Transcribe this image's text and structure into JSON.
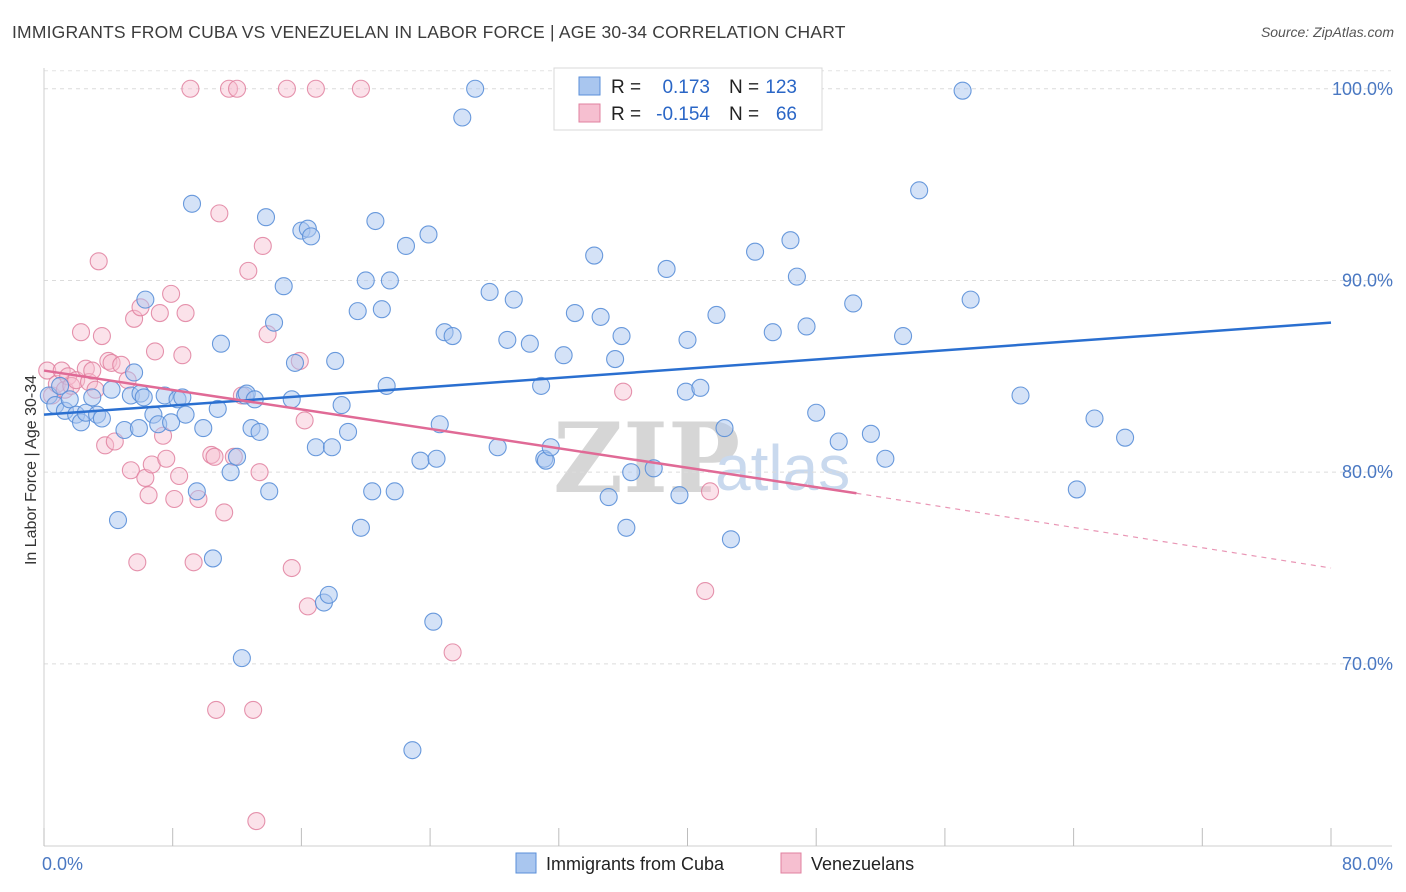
{
  "title": "IMMIGRANTS FROM CUBA VS VENEZUELAN IN LABOR FORCE | AGE 30-34 CORRELATION CHART",
  "source": "Source: ZipAtlas.com",
  "watermark": {
    "zip": "ZIP",
    "atlas": "atlas"
  },
  "legend": {
    "r_label": "R =",
    "n_label": "N =",
    "rows": [
      {
        "r": "0.173",
        "n": "123",
        "color": "#a9c6ef",
        "stroke": "#5a8fd8"
      },
      {
        "r": "-0.154",
        "n": "66",
        "color": "#f6bfd0",
        "stroke": "#e0809f"
      }
    ]
  },
  "bottom_legend": [
    "Immigrants from Cuba",
    "Venezuelans"
  ],
  "chart_data": {
    "type": "scatter",
    "title": "IMMIGRANTS FROM CUBA VS VENEZUELAN IN LABOR FORCE | AGE 30-34 CORRELATION CHART",
    "xlabel": "",
    "ylabel": "In Labor Force | Age 30-34",
    "xlim": [
      0,
      80
    ],
    "ylim": [
      60.5,
      101.5
    ],
    "x_tick_labels": [
      "0.0%",
      "80.0%"
    ],
    "y_ticks": [
      70,
      80,
      90,
      100
    ],
    "y_tick_labels": [
      "70.0%",
      "80.0%",
      "90.0%",
      "100.0%"
    ],
    "grid": true,
    "colors": {
      "cuba": "#5a8fd8",
      "cuba_fill": "#a9c6ef",
      "venezuela": "#e0809f",
      "venezuela_fill": "#f6bfd0",
      "cuba_line": "#2a6fd0",
      "venezuela_line": "#e06a96"
    },
    "series": [
      {
        "name": "Immigrants from Cuba",
        "trend": {
          "x": [
            0,
            80
          ],
          "y": [
            83.0,
            87.8
          ]
        },
        "points": [
          [
            0.3,
            84.0
          ],
          [
            0.7,
            83.5
          ],
          [
            1.0,
            84.5
          ],
          [
            1.3,
            83.2
          ],
          [
            1.6,
            83.8
          ],
          [
            2.0,
            83.0
          ],
          [
            2.3,
            82.6
          ],
          [
            2.6,
            83.1
          ],
          [
            3.0,
            83.9
          ],
          [
            3.3,
            83.0
          ],
          [
            3.6,
            82.8
          ],
          [
            4.2,
            84.3
          ],
          [
            4.6,
            77.5
          ],
          [
            5.0,
            82.2
          ],
          [
            5.4,
            84.0
          ],
          [
            5.6,
            85.2
          ],
          [
            5.9,
            82.3
          ],
          [
            6.0,
            84.1
          ],
          [
            6.2,
            83.9
          ],
          [
            6.3,
            89.0
          ],
          [
            6.8,
            83.0
          ],
          [
            7.1,
            82.5
          ],
          [
            7.5,
            84.0
          ],
          [
            7.9,
            82.6
          ],
          [
            8.3,
            83.8
          ],
          [
            8.6,
            83.9
          ],
          [
            8.8,
            83.0
          ],
          [
            9.2,
            94.0
          ],
          [
            9.5,
            79.0
          ],
          [
            9.9,
            82.3
          ],
          [
            10.5,
            75.5
          ],
          [
            10.8,
            83.3
          ],
          [
            11.0,
            86.7
          ],
          [
            11.6,
            80.0
          ],
          [
            12.0,
            80.8
          ],
          [
            12.3,
            70.3
          ],
          [
            12.5,
            84.0
          ],
          [
            12.9,
            82.3
          ],
          [
            12.6,
            84.1
          ],
          [
            13.1,
            83.8
          ],
          [
            13.4,
            82.1
          ],
          [
            13.8,
            93.3
          ],
          [
            14.0,
            79.0
          ],
          [
            14.3,
            87.8
          ],
          [
            14.9,
            89.7
          ],
          [
            15.4,
            83.8
          ],
          [
            15.6,
            85.7
          ],
          [
            16.0,
            92.6
          ],
          [
            16.4,
            92.7
          ],
          [
            16.6,
            92.3
          ],
          [
            16.9,
            81.3
          ],
          [
            17.4,
            73.2
          ],
          [
            17.7,
            73.6
          ],
          [
            17.9,
            81.3
          ],
          [
            18.1,
            85.8
          ],
          [
            18.5,
            83.5
          ],
          [
            18.9,
            82.1
          ],
          [
            19.5,
            88.4
          ],
          [
            19.7,
            77.1
          ],
          [
            20.0,
            90.0
          ],
          [
            20.4,
            79.0
          ],
          [
            20.6,
            93.1
          ],
          [
            21.0,
            88.5
          ],
          [
            21.3,
            84.5
          ],
          [
            21.5,
            90.0
          ],
          [
            21.8,
            79.0
          ],
          [
            22.5,
            91.8
          ],
          [
            22.9,
            65.5
          ],
          [
            23.4,
            80.6
          ],
          [
            23.9,
            92.4
          ],
          [
            24.2,
            72.2
          ],
          [
            24.4,
            80.7
          ],
          [
            24.6,
            82.5
          ],
          [
            24.9,
            87.3
          ],
          [
            25.4,
            87.1
          ],
          [
            26.0,
            98.5
          ],
          [
            26.8,
            100.0
          ],
          [
            27.7,
            89.4
          ],
          [
            28.2,
            81.3
          ],
          [
            28.8,
            86.9
          ],
          [
            29.2,
            89.0
          ],
          [
            30.2,
            86.7
          ],
          [
            30.9,
            84.5
          ],
          [
            31.1,
            80.7
          ],
          [
            31.2,
            80.6
          ],
          [
            31.5,
            81.3
          ],
          [
            32.3,
            86.1
          ],
          [
            33.0,
            88.3
          ],
          [
            34.2,
            91.3
          ],
          [
            34.6,
            88.1
          ],
          [
            35.1,
            78.7
          ],
          [
            35.5,
            85.9
          ],
          [
            35.9,
            87.1
          ],
          [
            36.2,
            77.1
          ],
          [
            36.5,
            80.0
          ],
          [
            37.9,
            80.2
          ],
          [
            38.7,
            90.6
          ],
          [
            39.5,
            78.8
          ],
          [
            39.9,
            84.2
          ],
          [
            40.0,
            86.9
          ],
          [
            40.8,
            84.4
          ],
          [
            41.8,
            88.2
          ],
          [
            42.3,
            82.3
          ],
          [
            42.7,
            76.5
          ],
          [
            44.2,
            91.5
          ],
          [
            45.3,
            87.3
          ],
          [
            46.4,
            92.1
          ],
          [
            46.8,
            90.2
          ],
          [
            47.4,
            87.6
          ],
          [
            48.0,
            83.1
          ],
          [
            49.4,
            81.6
          ],
          [
            50.3,
            88.8
          ],
          [
            51.4,
            82.0
          ],
          [
            52.3,
            80.7
          ],
          [
            53.4,
            87.1
          ],
          [
            54.4,
            94.7
          ],
          [
            57.1,
            99.9
          ],
          [
            57.6,
            89.0
          ],
          [
            60.7,
            84.0
          ],
          [
            64.2,
            79.1
          ],
          [
            65.3,
            82.8
          ],
          [
            67.2,
            81.8
          ],
          [
            32.9,
            99.9
          ]
        ]
      },
      {
        "name": "Venezuelans",
        "trend": {
          "x": [
            0,
            50.5
          ],
          "y": [
            85.3,
            78.9
          ]
        },
        "trend_dashed": {
          "x": [
            50.5,
            80
          ],
          "y": [
            78.9,
            75.0
          ]
        },
        "points": [
          [
            0.2,
            85.3
          ],
          [
            0.5,
            84.0
          ],
          [
            0.8,
            84.6
          ],
          [
            1.1,
            85.3
          ],
          [
            1.3,
            84.3
          ],
          [
            1.5,
            85.0
          ],
          [
            1.7,
            84.5
          ],
          [
            2.0,
            84.8
          ],
          [
            2.3,
            87.3
          ],
          [
            2.6,
            85.4
          ],
          [
            2.8,
            84.7
          ],
          [
            3.0,
            85.3
          ],
          [
            3.2,
            84.3
          ],
          [
            3.4,
            91.0
          ],
          [
            3.6,
            87.1
          ],
          [
            3.8,
            81.4
          ],
          [
            4.0,
            85.8
          ],
          [
            4.2,
            85.7
          ],
          [
            4.4,
            81.6
          ],
          [
            4.8,
            85.6
          ],
          [
            5.2,
            84.8
          ],
          [
            5.4,
            80.1
          ],
          [
            5.6,
            88.0
          ],
          [
            5.8,
            75.3
          ],
          [
            6.0,
            88.6
          ],
          [
            6.3,
            79.7
          ],
          [
            6.5,
            78.8
          ],
          [
            6.7,
            80.4
          ],
          [
            6.9,
            86.3
          ],
          [
            7.2,
            88.3
          ],
          [
            7.4,
            81.9
          ],
          [
            7.6,
            80.7
          ],
          [
            7.9,
            89.3
          ],
          [
            8.1,
            78.6
          ],
          [
            8.4,
            79.8
          ],
          [
            8.6,
            86.1
          ],
          [
            8.8,
            88.3
          ],
          [
            9.1,
            100.0
          ],
          [
            9.3,
            75.3
          ],
          [
            9.6,
            78.6
          ],
          [
            10.4,
            80.9
          ],
          [
            10.6,
            80.8
          ],
          [
            10.7,
            67.6
          ],
          [
            10.9,
            93.5
          ],
          [
            11.2,
            77.9
          ],
          [
            11.5,
            100.0
          ],
          [
            11.8,
            80.8
          ],
          [
            12.0,
            100.0
          ],
          [
            12.3,
            84.0
          ],
          [
            12.7,
            90.5
          ],
          [
            13.0,
            67.6
          ],
          [
            13.2,
            61.8
          ],
          [
            13.4,
            80.0
          ],
          [
            13.6,
            91.8
          ],
          [
            13.9,
            87.2
          ],
          [
            15.1,
            100.0
          ],
          [
            15.4,
            75.0
          ],
          [
            15.9,
            85.8
          ],
          [
            16.2,
            82.7
          ],
          [
            16.4,
            73.0
          ],
          [
            16.9,
            100.0
          ],
          [
            19.7,
            100.0
          ],
          [
            25.4,
            70.6
          ],
          [
            36.0,
            84.2
          ],
          [
            41.1,
            73.8
          ],
          [
            41.4,
            79.0
          ]
        ]
      }
    ]
  }
}
